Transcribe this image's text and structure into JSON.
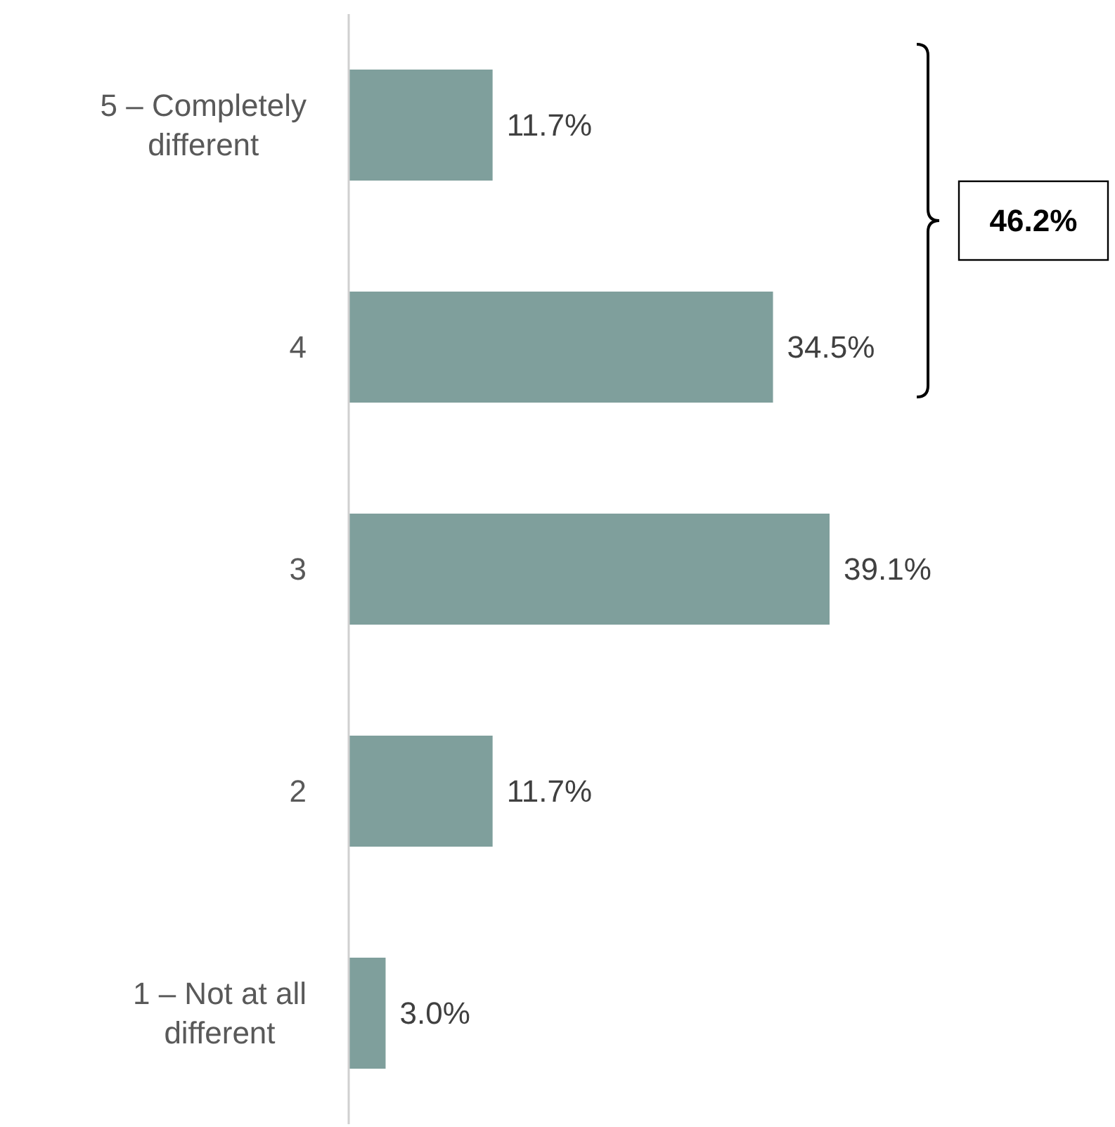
{
  "chart_data": {
    "type": "bar",
    "orientation": "horizontal",
    "categories": [
      "5 – Completely different",
      "4",
      "3",
      "2",
      "1 – Not at all different"
    ],
    "values": [
      11.7,
      34.5,
      39.1,
      11.7,
      3.0
    ],
    "color": "#7f9f9c",
    "value_labels": [
      "11.7%",
      "34.5%",
      "39.1%",
      "11.7%",
      "3.0%"
    ],
    "annotations": [
      "46.2%"
    ]
  }
}
